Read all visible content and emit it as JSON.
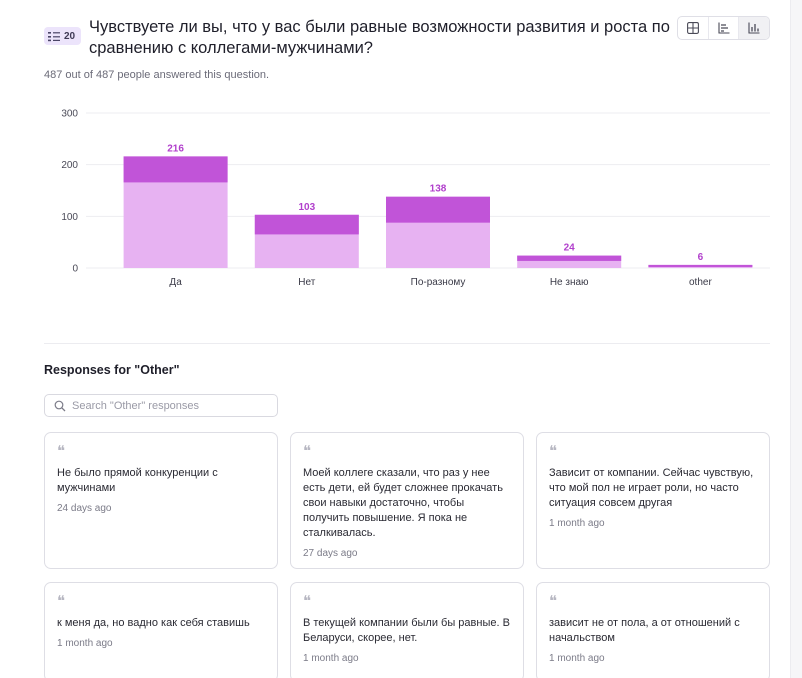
{
  "question": {
    "number": "20",
    "title": "Чувствуете ли вы, что у вас были равные возможности развития и роста по сравнению с коллегами-мужчинами?",
    "answered_text": "487 out of 487 people answered this question."
  },
  "view_toggle": {
    "icons": [
      "grid-icon",
      "list-chart-icon",
      "bar-chart-icon"
    ],
    "selected": "bar-chart-icon"
  },
  "chart_data": {
    "type": "bar",
    "categories": [
      "Да",
      "Нет",
      "По-разному",
      "Не знаю",
      "other"
    ],
    "values": [
      216,
      103,
      138,
      24,
      6
    ],
    "ylim": [
      0,
      300
    ],
    "yticks": [
      "300",
      "200",
      "100",
      "0"
    ],
    "title": "",
    "xlabel": "",
    "ylabel": "",
    "grid": true,
    "colors": {
      "bar_fill": "#e7b2f2",
      "bar_top": "#c154d8",
      "label": "#b13fcc"
    }
  },
  "responses": {
    "title": "Responses for \"Other\"",
    "search_placeholder": "Search \"Other\" responses",
    "search_value": "",
    "items": [
      {
        "text": "Не было прямой конкуренции с мужчинами",
        "time": "24 days ago"
      },
      {
        "text": "Моей коллеге сказали, что раз у нее есть дети, ей будет сложнее прокачать свои навыки достаточно, чтобы получить повышение. Я пока не сталкивалась.",
        "time": "27 days ago"
      },
      {
        "text": "Зависит от компании. Сейчас чувствую, что мой пол не играет роли, но часто ситуация совсем другая",
        "time": "1 month ago"
      },
      {
        "text": "к меня да, но вадно как себя ставишь",
        "time": "1 month ago"
      },
      {
        "text": "В текущей компании были бы равные. В Беларуси, скорее, нет.",
        "time": "1 month ago"
      },
      {
        "text": "зависит не от пола, а от отношений с начальством",
        "time": "1 month ago"
      }
    ]
  }
}
